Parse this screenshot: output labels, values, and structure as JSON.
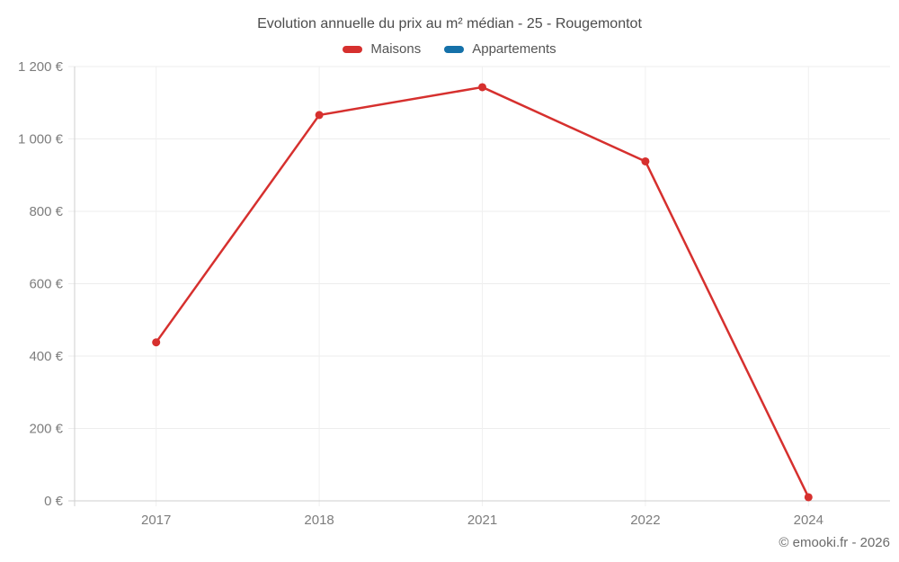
{
  "title": "Evolution annuelle du prix au m² médian - 25 - Rougemontot",
  "footer": {
    "copyright": "© emooki.fr - 2026"
  },
  "colors": {
    "maisons": "#d6302e",
    "appartements": "#1571a9",
    "grid": "#ededed",
    "grid_vertical": "#f0f0f0",
    "axis": "#cfcfcf",
    "tick_text": "#7d7d7d"
  },
  "chart_data": {
    "type": "line",
    "title": "Evolution annuelle du prix au m² médian - 25 - Rougemontot",
    "categories": [
      "2017",
      "2018",
      "2021",
      "2022",
      "2024"
    ],
    "series": [
      {
        "name": "Maisons",
        "color": "#d6302e",
        "values": [
          438,
          1066,
          1143,
          938,
          10
        ]
      },
      {
        "name": "Appartements",
        "color": "#1571a9",
        "values": []
      }
    ],
    "xlabel": "",
    "ylabel": "",
    "ylim": [
      0,
      1200
    ],
    "ytick_step": 200,
    "ytick_labels": [
      "0 €",
      "200 €",
      "400 €",
      "600 €",
      "800 €",
      "1 000 €",
      "1 200 €"
    ],
    "grid": true,
    "legend_position": "top"
  }
}
